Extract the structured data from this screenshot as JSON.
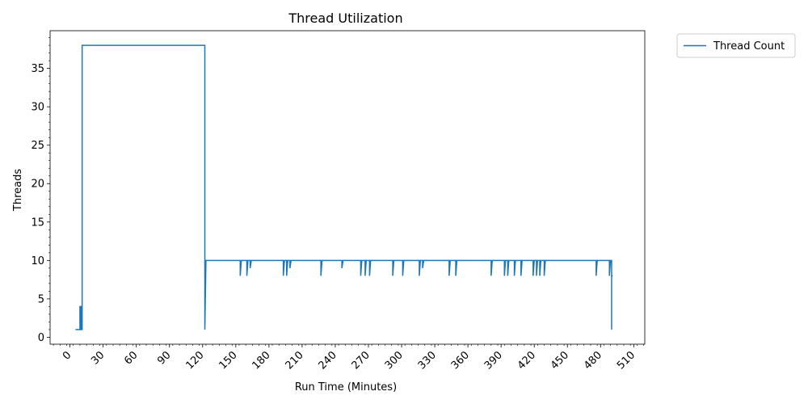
{
  "chart_data": {
    "type": "line",
    "title": "Thread Utilization",
    "xlabel": "Run Time (Minutes)",
    "ylabel": "Threads",
    "xlim": [
      -18,
      520
    ],
    "ylim": [
      -0.9,
      39.9
    ],
    "xticks": [
      0,
      30,
      60,
      90,
      120,
      150,
      180,
      210,
      240,
      270,
      300,
      330,
      360,
      390,
      420,
      450,
      480,
      510
    ],
    "xtick_labels": [
      "0",
      "30",
      "60",
      "90",
      "120",
      "150",
      "180",
      "210",
      "240",
      "270",
      "300",
      "330",
      "360",
      "390",
      "420",
      "450",
      "480",
      "510"
    ],
    "yticks": [
      0,
      5,
      10,
      15,
      20,
      25,
      30,
      35
    ],
    "ytick_labels": [
      "0",
      "5",
      "10",
      "15",
      "20",
      "25",
      "30",
      "35"
    ],
    "grid": false,
    "legend_position": "outside-top-right",
    "series": [
      {
        "name": "Thread Count",
        "color": "#1f77b4",
        "x": [
          5,
          9,
          9,
          10,
          10,
          11,
          11,
          122,
          122,
          123,
          154,
          154,
          155,
          160,
          160,
          161,
          163,
          163,
          164,
          193,
          193,
          194,
          196,
          196,
          197,
          199,
          199,
          200,
          227,
          227,
          228,
          246,
          246,
          247,
          263,
          263,
          264,
          267,
          267,
          268,
          271,
          271,
          272,
          292,
          292,
          293,
          301,
          301,
          302,
          316,
          316,
          317,
          319,
          319,
          320,
          343,
          343,
          344,
          349,
          349,
          350,
          381,
          381,
          382,
          393,
          393,
          394,
          396,
          396,
          397,
          402,
          402,
          403,
          408,
          408,
          409,
          419,
          419,
          420,
          422,
          422,
          423,
          425,
          425,
          426,
          429,
          429,
          430,
          476,
          476,
          477,
          488,
          488,
          489,
          490,
          490,
          490,
          491
        ],
        "y": [
          1,
          1,
          4,
          4,
          1,
          1,
          38,
          38,
          1,
          10,
          10,
          8,
          10,
          10,
          8,
          10,
          10,
          9,
          10,
          10,
          8,
          10,
          10,
          8,
          10,
          10,
          9,
          10,
          10,
          8,
          10,
          10,
          9,
          10,
          10,
          8,
          10,
          10,
          8,
          10,
          10,
          8,
          10,
          10,
          8,
          10,
          10,
          8,
          10,
          10,
          8,
          10,
          10,
          9,
          10,
          10,
          8,
          10,
          10,
          8,
          10,
          10,
          8,
          10,
          10,
          8,
          10,
          10,
          8,
          10,
          10,
          8,
          10,
          10,
          8,
          10,
          10,
          8,
          10,
          10,
          8,
          10,
          10,
          8,
          10,
          10,
          8,
          10,
          10,
          8,
          10,
          10,
          8,
          10,
          10,
          1,
          8,
          8
        ]
      }
    ]
  }
}
